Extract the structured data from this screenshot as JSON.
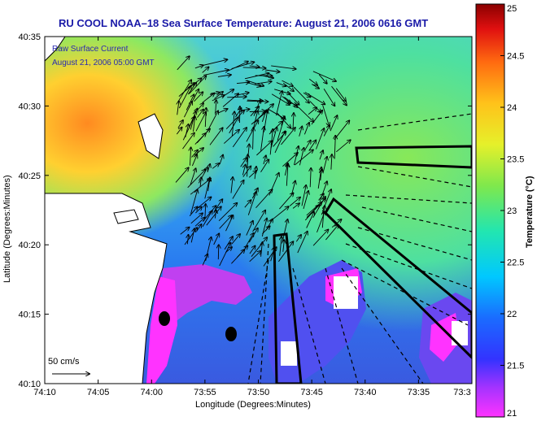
{
  "title": "RU COOL  NOAA–18  Sea Surface Temperature:  August 21, 2006 0616 GMT",
  "overlay": {
    "line1": "Raw Surface Current",
    "line2": "August 21, 2006 05:00 GMT"
  },
  "scale_arrow_label": "50 cm/s",
  "axes": {
    "xlabel": "Longitude (Degrees:Minutes)",
    "ylabel": "Latitude (Degrees:Minutes)",
    "x_ticks": [
      "74:10",
      "74:05",
      "74:00",
      "73:55",
      "73:50",
      "73:45",
      "73:40",
      "73:35",
      "73:3"
    ],
    "y_ticks": [
      "40:35",
      "40:30",
      "40:25",
      "40:20",
      "40:15",
      "40:10"
    ]
  },
  "colorbar": {
    "label": "Temperature (°C)",
    "min": 21,
    "max": 25,
    "ticks": [
      "25",
      "24.5",
      "24",
      "23.5",
      "23",
      "22.5",
      "22",
      "21.5",
      "21"
    ]
  }
}
